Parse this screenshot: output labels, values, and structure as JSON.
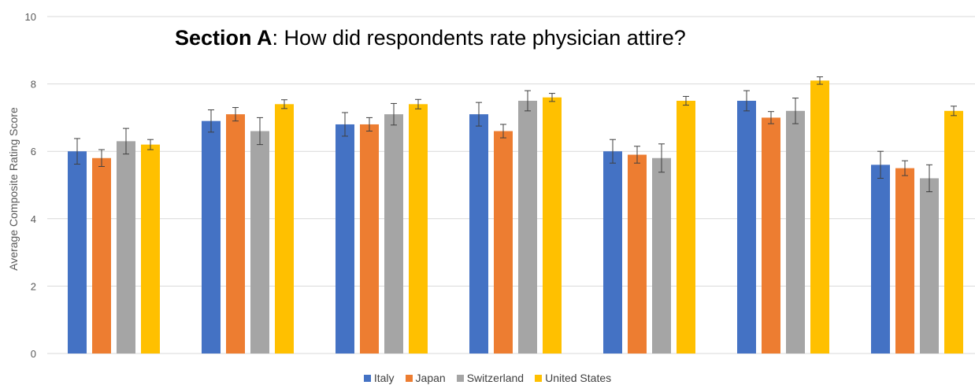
{
  "chart_data": {
    "type": "bar",
    "title_bold": "Section A",
    "title_rest": ": How did respondents rate physician attire?",
    "ylabel": "Average Composite Rating Score",
    "ylim": [
      0,
      10
    ],
    "yticks": [
      "0",
      "2",
      "4",
      "6",
      "8",
      "10"
    ],
    "grid": true,
    "legend_position": "bottom",
    "groups": 7,
    "series": [
      {
        "name": "Italy",
        "color": "#4472C4",
        "values": [
          6.0,
          6.9,
          6.8,
          7.1,
          6.0,
          7.5,
          5.6
        ],
        "errors": [
          0.38,
          0.33,
          0.35,
          0.35,
          0.35,
          0.3,
          0.4
        ]
      },
      {
        "name": "Japan",
        "color": "#ED7D31",
        "values": [
          5.8,
          7.1,
          6.8,
          6.6,
          5.9,
          7.0,
          5.5
        ],
        "errors": [
          0.25,
          0.2,
          0.2,
          0.2,
          0.25,
          0.18,
          0.22
        ]
      },
      {
        "name": "Switzerland",
        "color": "#A5A5A5",
        "values": [
          6.3,
          6.6,
          7.1,
          7.5,
          5.8,
          7.2,
          5.2
        ],
        "errors": [
          0.38,
          0.4,
          0.32,
          0.3,
          0.42,
          0.38,
          0.4
        ]
      },
      {
        "name": "United States",
        "color": "#FFC000",
        "values": [
          6.2,
          7.4,
          7.4,
          7.6,
          7.5,
          8.1,
          7.2
        ],
        "errors": [
          0.15,
          0.13,
          0.14,
          0.12,
          0.13,
          0.11,
          0.14
        ]
      }
    ]
  }
}
